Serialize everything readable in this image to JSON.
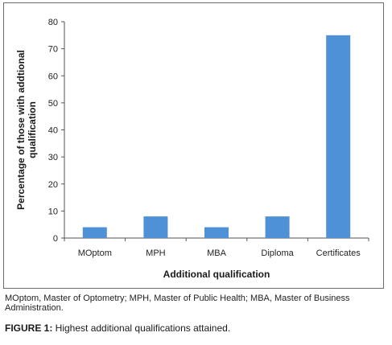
{
  "chart_data": {
    "type": "bar",
    "categories": [
      "MOptom",
      "MPH",
      "MBA",
      "Diploma",
      "Certificates"
    ],
    "values": [
      4,
      8,
      4,
      8,
      75
    ],
    "title": "",
    "xlabel": "Additional qualification",
    "ylabel": "Percentage of those with addtional qualification",
    "ylim": [
      0,
      80
    ],
    "yticks": [
      0,
      10,
      20,
      30,
      40,
      50,
      60,
      70,
      80
    ],
    "grid": false,
    "bar_color": "#4e91d6"
  },
  "footnote": "MOptom, Master of Optometry; MPH, Master of Public Health; MBA, Master of Business Administration.",
  "caption": {
    "label": "FIGURE 1:",
    "text": " Highest additional qualifications attained."
  }
}
